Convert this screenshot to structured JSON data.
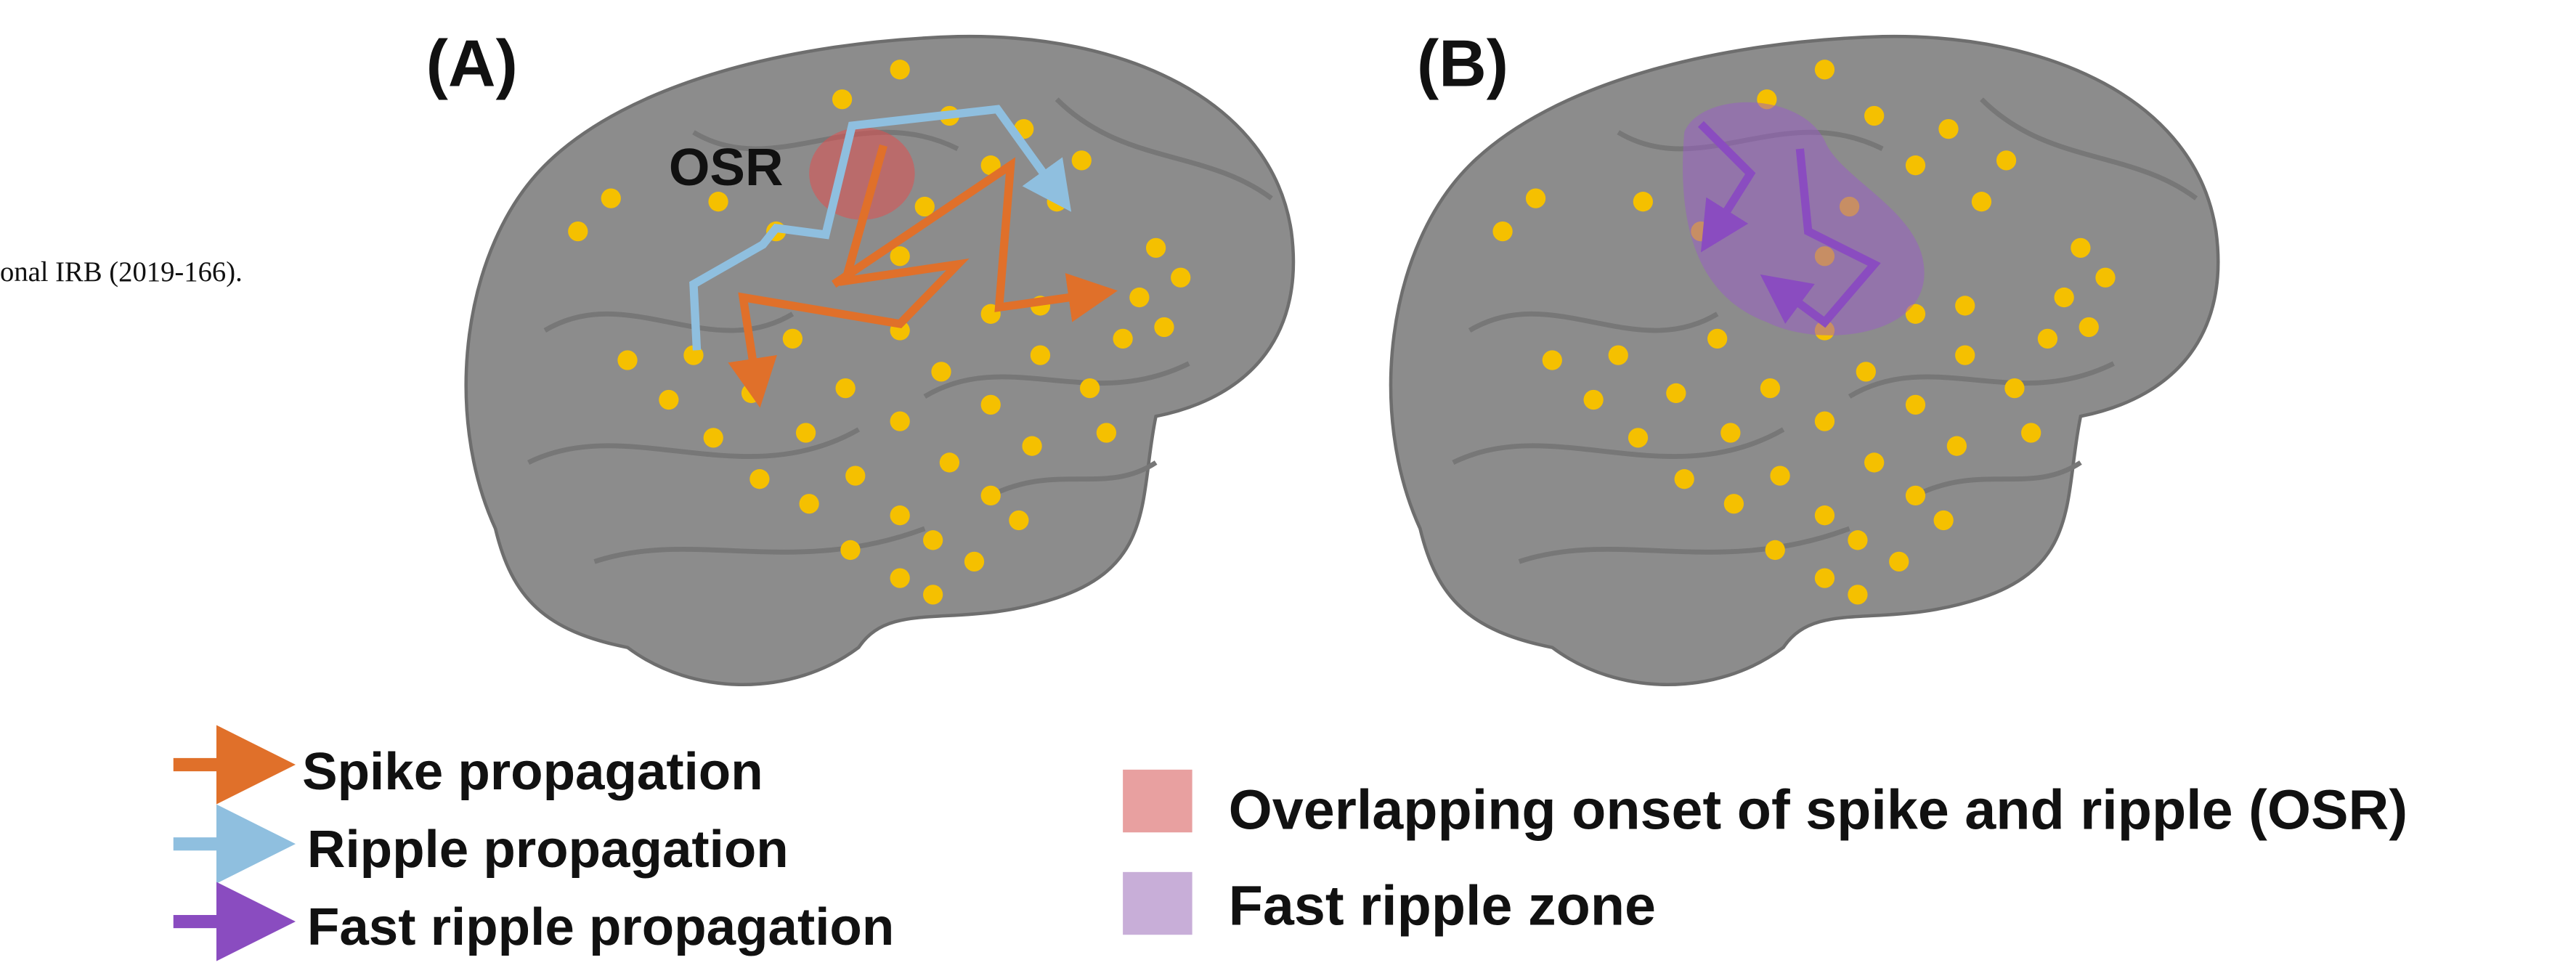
{
  "side_text": "onal IRB (2019-166).",
  "panels": [
    {
      "label": "(A)",
      "annotation": "OSR"
    },
    {
      "label": "(B)"
    }
  ],
  "legend": {
    "arrows": [
      "Spike propagation",
      "Ripple propagation",
      "Fast ripple propagation"
    ],
    "zones": [
      "Overlapping onset of spike and ripple (OSR)",
      "Fast ripple zone"
    ]
  }
}
